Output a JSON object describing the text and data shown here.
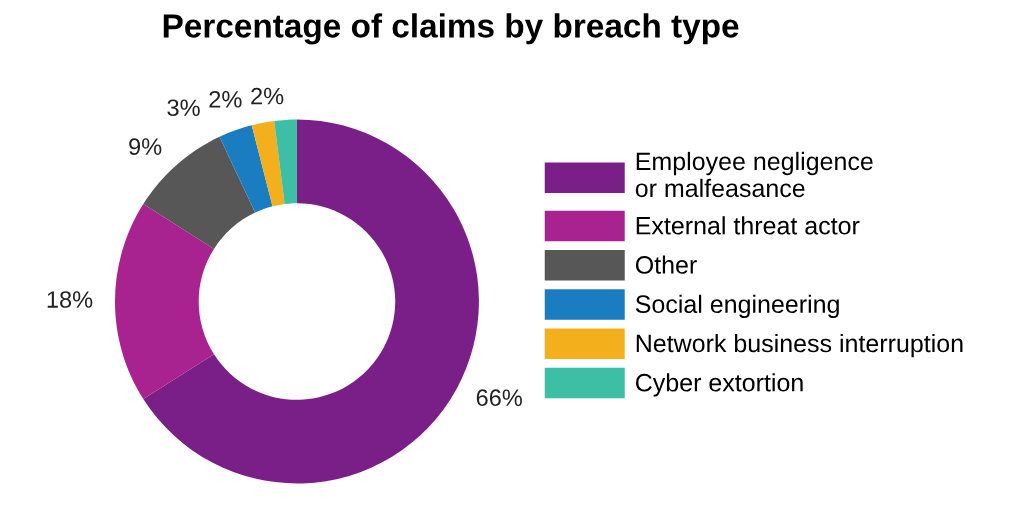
{
  "chart_data": {
    "type": "donut",
    "title": "Percentage of claims by breach type",
    "categories": [
      "Employee negligence\nor malfeasance",
      "External threat actor",
      "Other",
      "Social engineering",
      "Network business interruption",
      "Cyber extortion"
    ],
    "values": [
      66,
      18,
      9,
      3,
      2,
      2
    ],
    "colors": [
      "#7a1f87",
      "#a8238f",
      "#575757",
      "#1b7dc1",
      "#f4b01c",
      "#3dbfa5"
    ],
    "value_labels": [
      "66%",
      "18%",
      "9%",
      "3%",
      "2%",
      "2%"
    ],
    "legend": "right"
  }
}
